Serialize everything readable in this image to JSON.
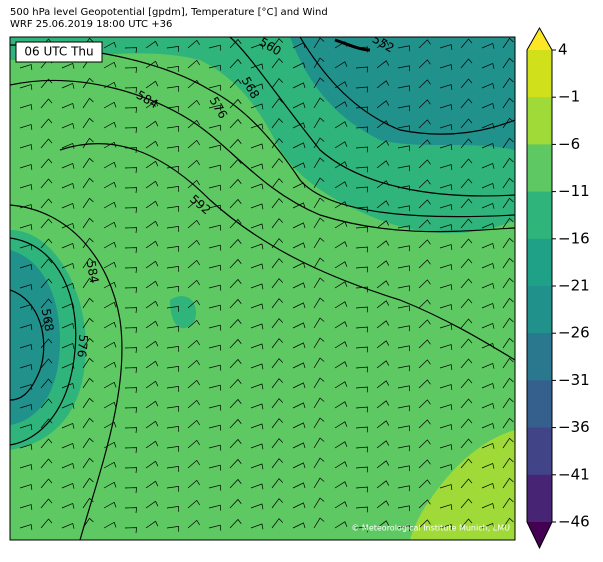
{
  "header": {
    "line1": "500 hPa level Geopotential [gpdm], Temperature [°C] and Wind",
    "line2": "WRF 25.06.2019 18:00 UTC +36"
  },
  "time_label": "06 UTC Thu",
  "contour_labels": [
    560,
    552,
    568,
    576,
    584,
    592,
    584,
    568,
    576
  ],
  "credit": "© Meteorological Institute Munich, LMU",
  "colorbar": {
    "ticks": [
      4,
      {
        "value": -1,
        "label": "−1"
      },
      {
        "value": -6,
        "label": "−6"
      },
      {
        "value": -11,
        "label": "−11"
      },
      {
        "value": -16,
        "label": "−16"
      },
      {
        "value": -21,
        "label": "−21"
      },
      {
        "value": -26,
        "label": "−26"
      },
      {
        "value": -31,
        "label": "−31"
      },
      {
        "value": -36,
        "label": "−36"
      },
      {
        "value": -41,
        "label": "−41"
      },
      {
        "value": -46,
        "label": "−46"
      }
    ],
    "colors": [
      "#fde725",
      "#d0e11c",
      "#a0da39",
      "#5ec962",
      "#2fb47c",
      "#1fa187",
      "#21918c",
      "#2a788e",
      "#355f8d",
      "#414487",
      "#482475",
      "#440154"
    ]
  }
}
